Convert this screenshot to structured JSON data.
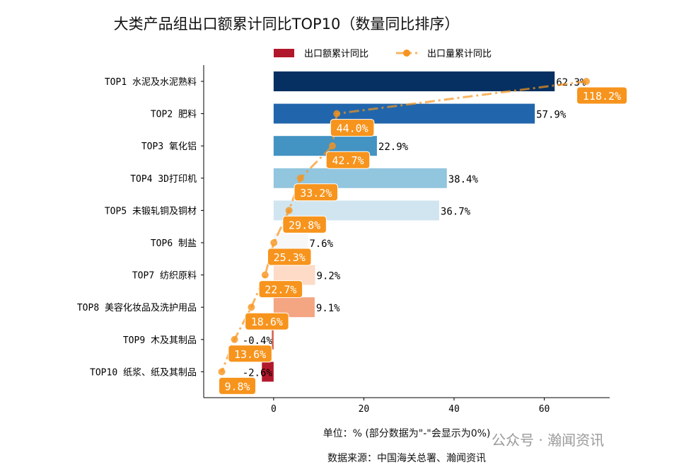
{
  "chart_data": {
    "type": "bar",
    "title": "大类产品组出口额累计同比TOP10（数量同比排序）",
    "categories": [
      "TOP1 水泥及水泥熟料",
      "TOP2 肥料",
      "TOP3 氧化铝",
      "TOP4 3D打印机",
      "TOP5 未锻轧铜及铜材",
      "TOP6 制盐",
      "TOP7 纺织原料",
      "TOP8 美容化妆品及洗护用品",
      "TOP9 木及其制品",
      "TOP10 纸浆、纸及其制品"
    ],
    "series": [
      {
        "name": "出口额累计同比",
        "type": "bar",
        "values": [
          62.3,
          57.9,
          22.9,
          38.4,
          36.7,
          7.6,
          9.2,
          9.1,
          -0.4,
          -2.6
        ],
        "labels": [
          "62.3%",
          "57.9%",
          "22.9%",
          "38.4%",
          "36.7%",
          "7.6%",
          "9.2%",
          "9.1%",
          "-0.4%",
          "-2.6%"
        ],
        "colors": [
          "#053061",
          "#2166ac",
          "#4393c3",
          "#92c5de",
          "#d1e5f0",
          "#f7f7f7",
          "#fddbc7",
          "#f4a582",
          "#d6604d",
          "#b2182b"
        ]
      },
      {
        "name": "出口量累计同比",
        "type": "line",
        "values": [
          118.2,
          44.0,
          42.7,
          33.2,
          29.8,
          25.3,
          22.7,
          18.6,
          13.6,
          9.8
        ],
        "labels": [
          "118.2%",
          "44.0%",
          "42.7%",
          "33.2%",
          "29.8%",
          "25.3%",
          "22.7%",
          "18.6%",
          "13.6%",
          "9.8%"
        ],
        "color": "#f7941d",
        "line_style": "dash-dot",
        "secondary_axis_hidden": true
      }
    ],
    "xticks": [
      "0",
      "20",
      "40",
      "60"
    ],
    "xlim": [
      -15.5,
      74.5
    ],
    "legend": "top",
    "grid": false,
    "xlabel": "单位：%  (部分数据为\"-\"会显示为0%)",
    "source": "数据来源：中国海关总署、瀚闻资讯",
    "watermark": "公众号 · 瀚闻资讯"
  }
}
